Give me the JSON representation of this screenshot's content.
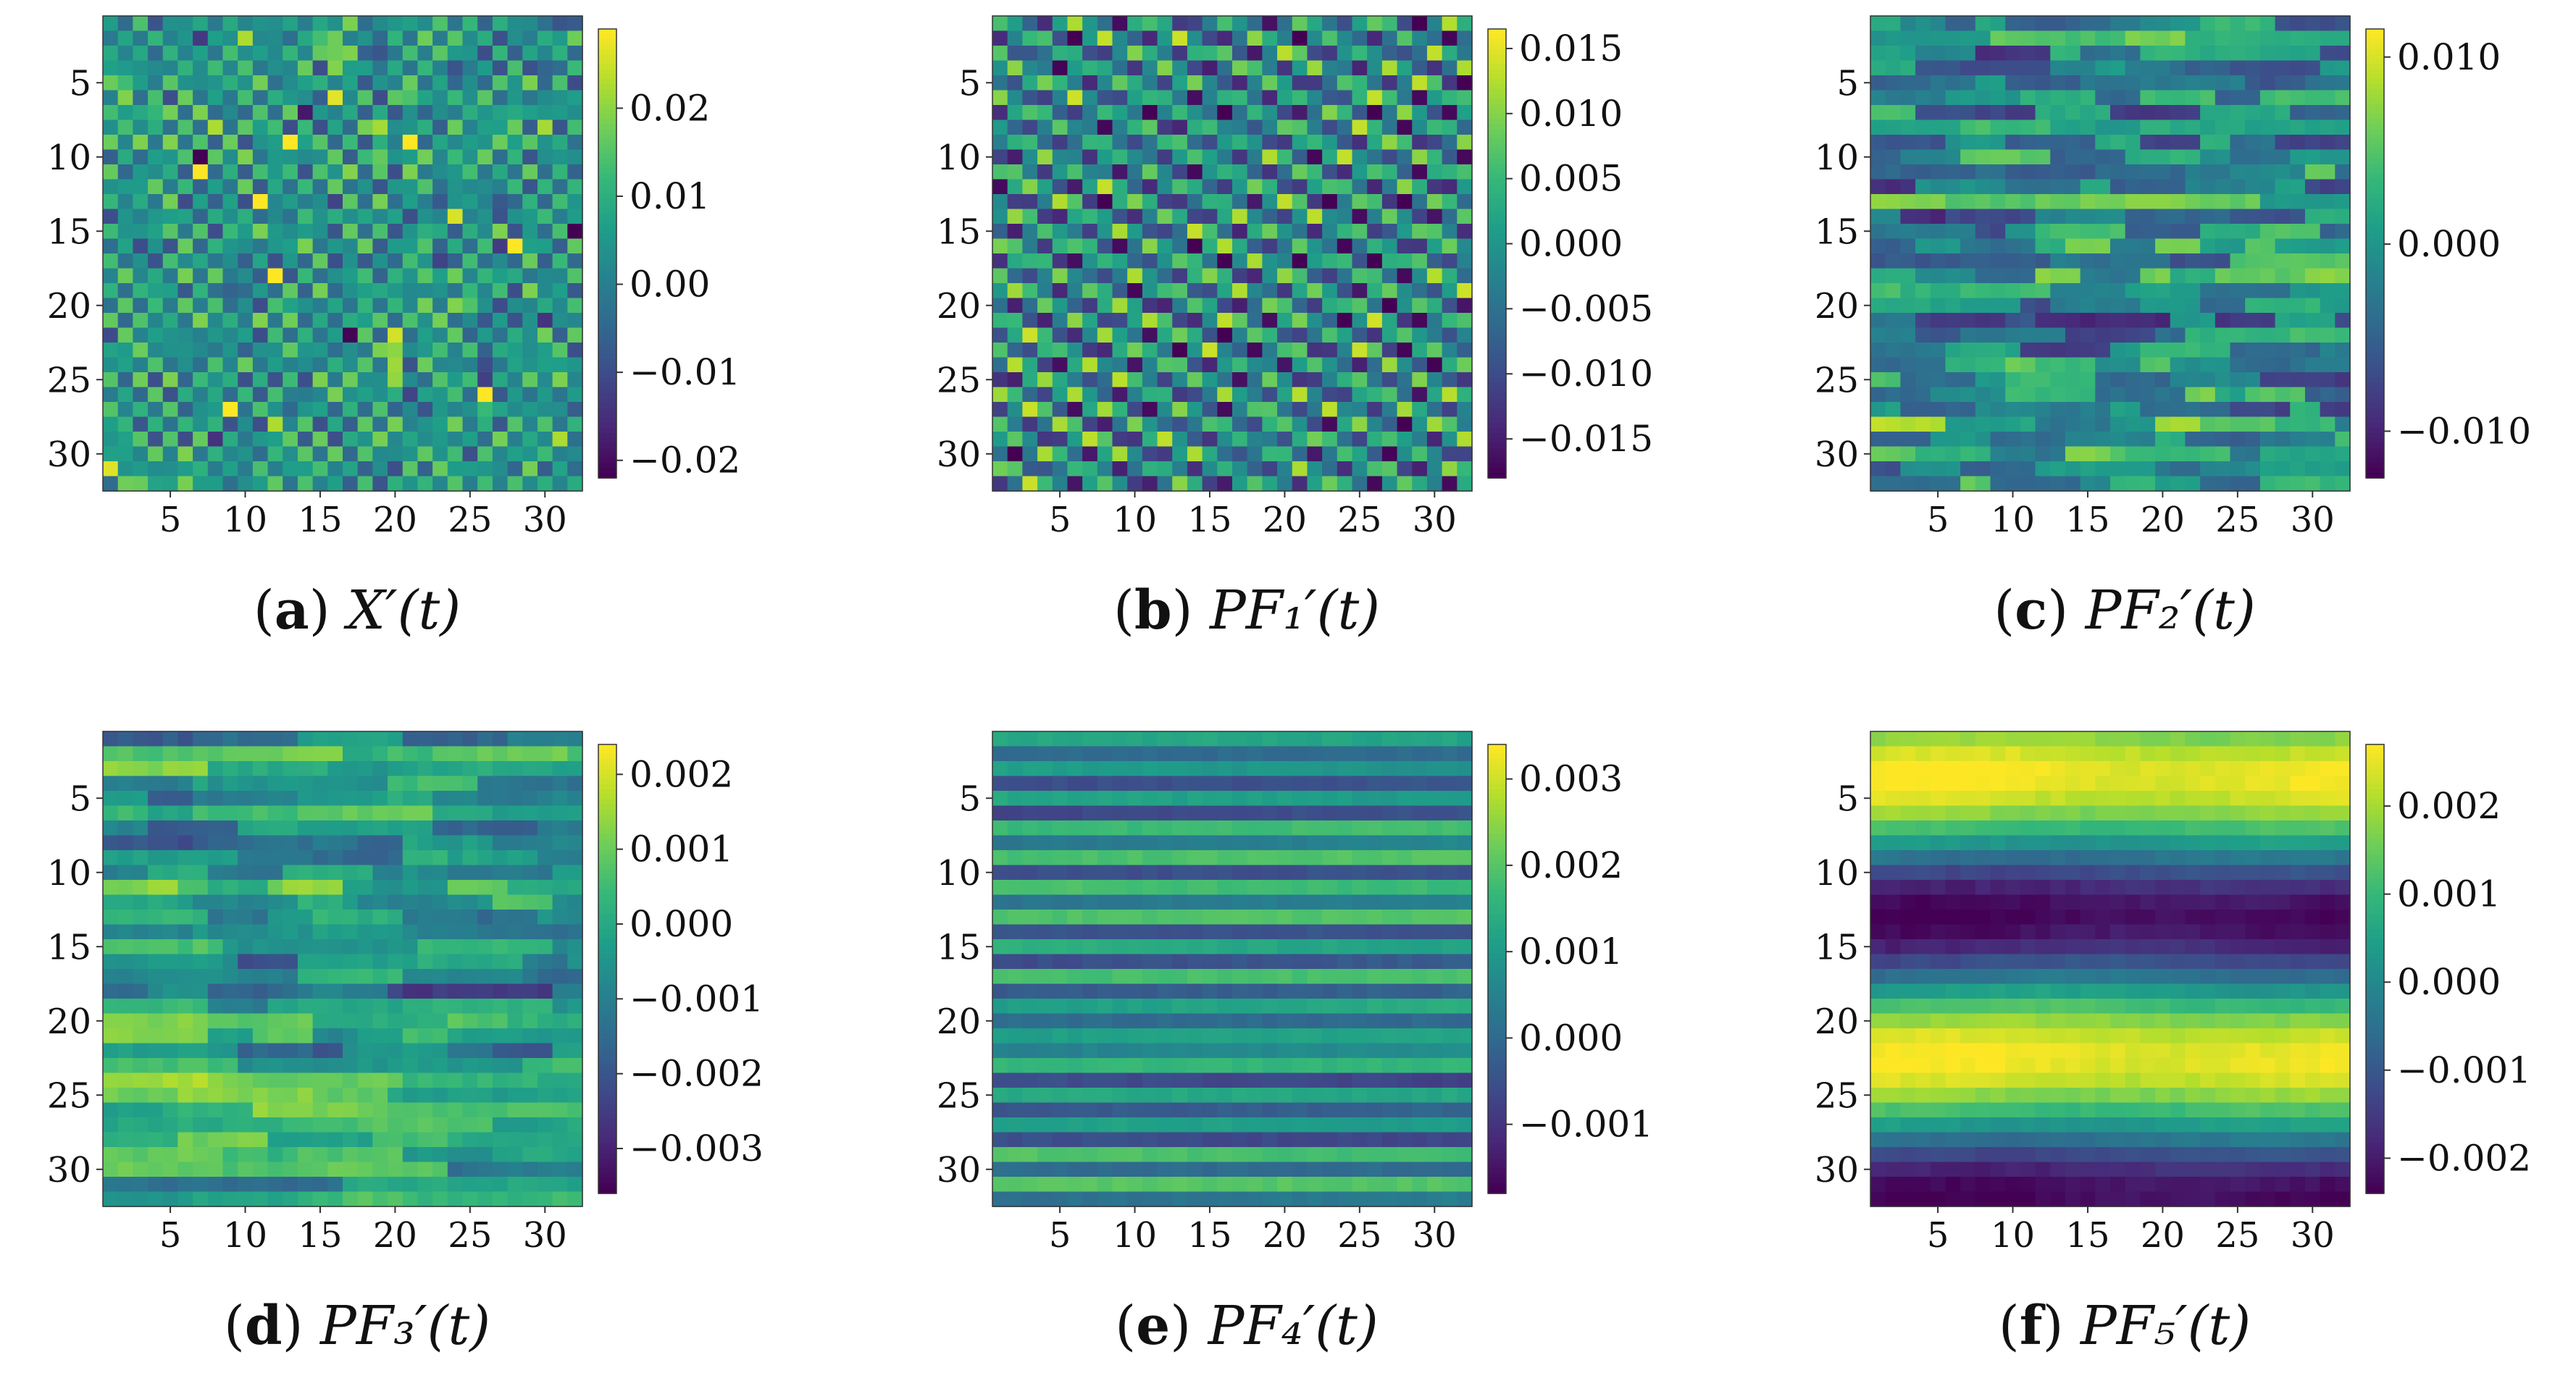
{
  "figure": {
    "panels_total": 6,
    "colormap": [
      "#440154",
      "#482878",
      "#3e4a89",
      "#31688e",
      "#26828e",
      "#1f9e89",
      "#35b779",
      "#6dcd59",
      "#b4de2c",
      "#fde725"
    ]
  },
  "chart_data": [
    {
      "type": "heatmap",
      "panel": "a",
      "caption_letter": "a",
      "caption_math": "X′(t)",
      "title": "",
      "xlabel": "",
      "ylabel": "",
      "size": [
        32,
        32
      ],
      "xlim": [
        1,
        32
      ],
      "ylim": [
        1,
        32
      ],
      "xticks": [
        5,
        10,
        15,
        20,
        25,
        30
      ],
      "yticks": [
        5,
        10,
        15,
        20,
        25,
        30
      ],
      "pattern": "checker",
      "vmin": -0.022,
      "vmax": 0.029,
      "colorbar_ticks": [
        0.02,
        0.01,
        0.0,
        -0.01,
        -0.02
      ],
      "colorbar_labels": [
        "0.02",
        "0.01",
        "0.00",
        "−0.01",
        "−0.02"
      ]
    },
    {
      "type": "heatmap",
      "panel": "b",
      "caption_letter": "b",
      "caption_math": "PF₁′(t)",
      "title": "",
      "xlabel": "",
      "ylabel": "",
      "size": [
        32,
        32
      ],
      "xlim": [
        1,
        32
      ],
      "ylim": [
        1,
        32
      ],
      "xticks": [
        5,
        10,
        15,
        20,
        25,
        30
      ],
      "yticks": [
        5,
        10,
        15,
        20,
        25,
        30
      ],
      "pattern": "diagonal",
      "vmin": -0.018,
      "vmax": 0.0165,
      "colorbar_ticks": [
        0.015,
        0.01,
        0.005,
        0.0,
        -0.005,
        -0.01,
        -0.015
      ],
      "colorbar_labels": [
        "0.015",
        "0.010",
        "0.005",
        "0.000",
        "−0.005",
        "−0.010",
        "−0.015"
      ]
    },
    {
      "type": "heatmap",
      "panel": "c",
      "caption_letter": "c",
      "caption_math": "PF₂′(t)",
      "title": "",
      "xlabel": "",
      "ylabel": "",
      "size": [
        32,
        32
      ],
      "xlim": [
        1,
        32
      ],
      "ylim": [
        1,
        32
      ],
      "xticks": [
        5,
        10,
        15,
        20,
        25,
        30
      ],
      "yticks": [
        5,
        10,
        15,
        20,
        25,
        30
      ],
      "pattern": "dashes",
      "vmin": -0.0125,
      "vmax": 0.0115,
      "colorbar_ticks": [
        0.01,
        0.0,
        -0.01
      ],
      "colorbar_labels": [
        "0.010",
        "0.000",
        "−0.010"
      ]
    },
    {
      "type": "heatmap",
      "panel": "d",
      "caption_letter": "d",
      "caption_math": "PF₃′(t)",
      "title": "",
      "xlabel": "",
      "ylabel": "",
      "size": [
        32,
        32
      ],
      "xlim": [
        1,
        32
      ],
      "ylim": [
        1,
        32
      ],
      "xticks": [
        5,
        10,
        15,
        20,
        25,
        30
      ],
      "yticks": [
        5,
        10,
        15,
        20,
        25,
        30
      ],
      "pattern": "streaks",
      "vmin": -0.0036,
      "vmax": 0.0024,
      "colorbar_ticks": [
        0.002,
        0.001,
        0.0,
        -0.001,
        -0.002,
        -0.003
      ],
      "colorbar_labels": [
        "0.002",
        "0.001",
        "0.000",
        "−0.001",
        "−0.002",
        "−0.003"
      ]
    },
    {
      "type": "heatmap",
      "panel": "e",
      "caption_letter": "e",
      "caption_math": "PF₄′(t)",
      "title": "",
      "xlabel": "",
      "ylabel": "",
      "size": [
        32,
        32
      ],
      "xlim": [
        1,
        32
      ],
      "ylim": [
        1,
        32
      ],
      "xticks": [
        5,
        10,
        15,
        20,
        25,
        30
      ],
      "yticks": [
        5,
        10,
        15,
        20,
        25,
        30
      ],
      "pattern": "rows",
      "vmin": -0.0018,
      "vmax": 0.0034,
      "colorbar_ticks": [
        0.003,
        0.002,
        0.001,
        0.0,
        -0.001
      ],
      "colorbar_labels": [
        "0.003",
        "0.002",
        "0.001",
        "0.000",
        "−0.001"
      ]
    },
    {
      "type": "heatmap",
      "panel": "f",
      "caption_letter": "f",
      "caption_math": "PF₅′(t)",
      "title": "",
      "xlabel": "",
      "ylabel": "",
      "size": [
        32,
        32
      ],
      "xlim": [
        1,
        32
      ],
      "ylim": [
        1,
        32
      ],
      "xticks": [
        5,
        10,
        15,
        20,
        25,
        30
      ],
      "yticks": [
        5,
        10,
        15,
        20,
        25,
        30
      ],
      "pattern": "bands",
      "vmin": -0.0024,
      "vmax": 0.0027,
      "colorbar_ticks": [
        0.002,
        0.001,
        0.0,
        -0.001,
        -0.002
      ],
      "colorbar_labels": [
        "0.002",
        "0.001",
        "0.000",
        "−0.001",
        "−0.002"
      ]
    }
  ]
}
